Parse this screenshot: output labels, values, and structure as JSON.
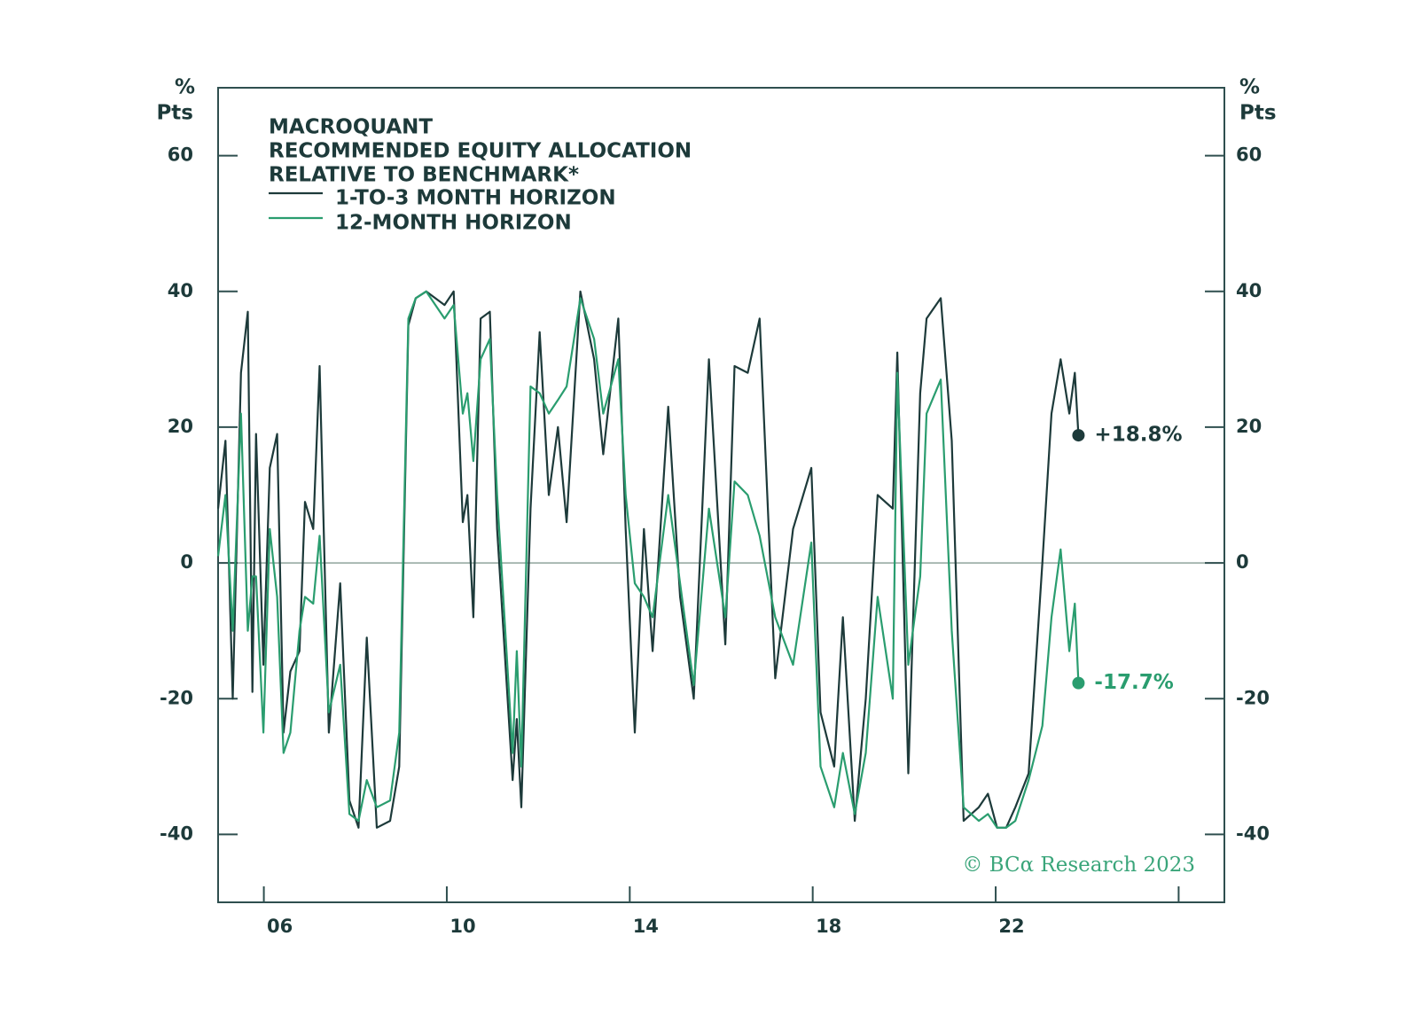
{
  "chart_data": {
    "type": "line",
    "title": [
      "MACROQUANT",
      "RECOMMENDED EQUITY ALLOCATION",
      "RELATIVE TO BENCHMARK*"
    ],
    "ylabel": [
      "%",
      "Pts"
    ],
    "y2label": [
      "%",
      "Pts"
    ],
    "source": "© BCα Research 2023",
    "x": [
      2005.0,
      2005.16,
      2005.32,
      2005.5,
      2005.65,
      2005.75,
      2005.83,
      2005.99,
      2006.13,
      2006.29,
      2006.43,
      2006.58,
      2006.78,
      2006.9,
      2007.08,
      2007.22,
      2007.42,
      2007.67,
      2007.87,
      2008.07,
      2008.25,
      2008.47,
      2008.76,
      2008.96,
      2009.16,
      2009.32,
      2009.55,
      2009.95,
      2010.15,
      2010.35,
      2010.45,
      2010.58,
      2010.74,
      2010.94,
      2011.1,
      2011.44,
      2011.53,
      2011.63,
      2011.83,
      2012.03,
      2012.23,
      2012.43,
      2012.62,
      2012.92,
      2013.22,
      2013.42,
      2013.75,
      2013.91,
      2014.11,
      2014.31,
      2014.5,
      2014.84,
      2015.1,
      2015.4,
      2015.73,
      2016.09,
      2016.29,
      2016.58,
      2016.84,
      2017.18,
      2017.57,
      2017.97,
      2018.17,
      2018.47,
      2018.66,
      2018.92,
      2019.16,
      2019.42,
      2019.75,
      2019.85,
      2020.09,
      2020.35,
      2020.49,
      2020.8,
      2021.04,
      2021.3,
      2021.63,
      2021.83,
      2022.03,
      2022.23,
      2022.43,
      2022.72,
      2023.02,
      2023.22,
      2023.42,
      2023.61,
      2023.73,
      2023.81
    ],
    "series": [
      {
        "name": "1-TO-3 MONTH HORIZON",
        "color": "#1d3a3a",
        "end_label": "+18.8%",
        "values": [
          8,
          18,
          -20,
          28,
          37,
          -19,
          19,
          -15,
          14,
          19,
          -25,
          -16,
          -13,
          9,
          5,
          29,
          -25,
          -3,
          -35,
          -39,
          -11,
          -39,
          -38,
          -30,
          35,
          39,
          40,
          38,
          40,
          6,
          10,
          -8,
          36,
          37,
          5,
          -32,
          -23,
          -36,
          8,
          34,
          10,
          20,
          6,
          40,
          30,
          16,
          36,
          5,
          -25,
          5,
          -13,
          23,
          -5,
          -20,
          30,
          -12,
          29,
          28,
          36,
          -17,
          5,
          14,
          -22,
          -30,
          -8,
          -38,
          -20,
          10,
          8,
          31,
          -31,
          25,
          36,
          39,
          18,
          -38,
          -36,
          -34,
          -39,
          -39,
          -36,
          -31,
          0,
          22,
          30,
          22,
          28,
          18.8
        ]
      },
      {
        "name": "12-MONTH HORIZON",
        "color": "#2a9d6f",
        "end_label": "-17.7%",
        "values": [
          1,
          10,
          -10,
          22,
          -10,
          -2,
          -2,
          -25,
          5,
          -5,
          -28,
          -25,
          -10,
          -5,
          -6,
          4,
          -22,
          -15,
          -37,
          -38,
          -32,
          -36,
          -35,
          -25,
          36,
          39,
          40,
          36,
          38,
          22,
          25,
          15,
          30,
          33,
          10,
          -28,
          -13,
          -30,
          26,
          25,
          22,
          24,
          26,
          39,
          33,
          22,
          30,
          10,
          -3,
          -5,
          -8,
          10,
          -3,
          -18,
          8,
          -8,
          12,
          10,
          4,
          -8,
          -15,
          3,
          -30,
          -36,
          -28,
          -37,
          -28,
          -5,
          -20,
          28,
          -15,
          -2,
          22,
          27,
          -10,
          -36,
          -38,
          -37,
          -39,
          -39,
          -38,
          -32,
          -24,
          -8,
          2,
          -13,
          -6,
          -17.7
        ]
      }
    ],
    "xlim": [
      2005,
      2027
    ],
    "xticks": [
      {
        "value": 2006,
        "label": "06"
      },
      {
        "value": 2010,
        "label": "10"
      },
      {
        "value": 2014,
        "label": "14"
      },
      {
        "value": 2018,
        "label": "18"
      },
      {
        "value": 2022,
        "label": "22"
      },
      {
        "value": 2026,
        "label": null
      }
    ],
    "ylim": [
      -50,
      70
    ],
    "yticks": [
      60,
      40,
      20,
      0,
      -20,
      -40
    ],
    "y2lim": [
      -50,
      70
    ],
    "y2ticks": [
      60,
      40,
      20,
      0,
      -20,
      -40
    ],
    "zero_line": true,
    "grid": false
  }
}
